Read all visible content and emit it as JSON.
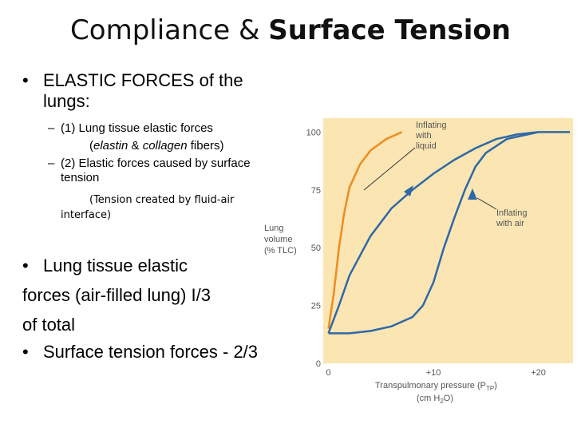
{
  "slide": {
    "title_plain": "Compliance &",
    "title_bold": "Surface Tension",
    "bullets": [
      {
        "bullet": "•",
        "text": "ELASTIC FORCES of the lungs:"
      },
      {
        "bullet": "–",
        "text": "(1) Lung tissue elastic forces"
      },
      {
        "parts": [
          "(",
          "elastin",
          " & ",
          "collagen",
          " fibers)"
        ]
      },
      {
        "bullet": "–",
        "text": "(2) Elastic forces caused by surface tension"
      },
      {
        "parts": [
          "(Tension created by fluid-air",
          "interface)"
        ]
      },
      {
        "bullet": "•",
        "lines": [
          "Lung tissue elastic",
          "forces (air-filled lung) I/3",
          "of total"
        ]
      },
      {
        "bullet": "•",
        "text": "Surface tension forces - 2/3"
      }
    ]
  },
  "chart_data": {
    "type": "line",
    "ylabel": [
      "Lung",
      "volume",
      "(% TLC)"
    ],
    "xlabel": [
      "Transpulmonary pressure (P",
      "TP",
      ")"
    ],
    "xlabel_units": [
      "(cm H",
      "2",
      "O)"
    ],
    "annotations": [
      [
        "Inflating",
        "with",
        "liquid"
      ],
      [
        "Inflating",
        "with air"
      ]
    ],
    "xlim": [
      -0.5,
      23.3
    ],
    "ylim": [
      0,
      106
    ],
    "xticks": [
      0,
      {
        "value": 10,
        "label": "+10"
      },
      {
        "value": 20,
        "label": "+20"
      }
    ],
    "yticks": [
      0,
      25,
      50,
      75,
      100
    ],
    "background": "#fbe5b3",
    "series": [
      {
        "color": "#ef8c1c",
        "x": [
          0,
          0.5,
          1,
          1.5,
          2,
          3,
          4,
          5.5,
          7
        ],
        "values": [
          15,
          30,
          50,
          65,
          76,
          86,
          92,
          97,
          100
        ]
      },
      {
        "color": "#2f68a6",
        "x": [
          0,
          2,
          4,
          6,
          8,
          9,
          10,
          11,
          12,
          13,
          14,
          15,
          17,
          20,
          23
        ],
        "values": [
          13,
          13,
          14,
          16,
          20,
          25,
          35,
          50,
          63,
          75,
          85,
          91,
          97,
          100,
          100
        ]
      },
      {
        "color": "#2f68a6",
        "x": [
          0,
          1,
          2,
          4,
          6,
          8,
          10,
          12,
          14,
          16,
          18,
          20
        ],
        "values": [
          13,
          25,
          38,
          55,
          67,
          75,
          82,
          88,
          93,
          97,
          99,
          100
        ]
      }
    ]
  }
}
